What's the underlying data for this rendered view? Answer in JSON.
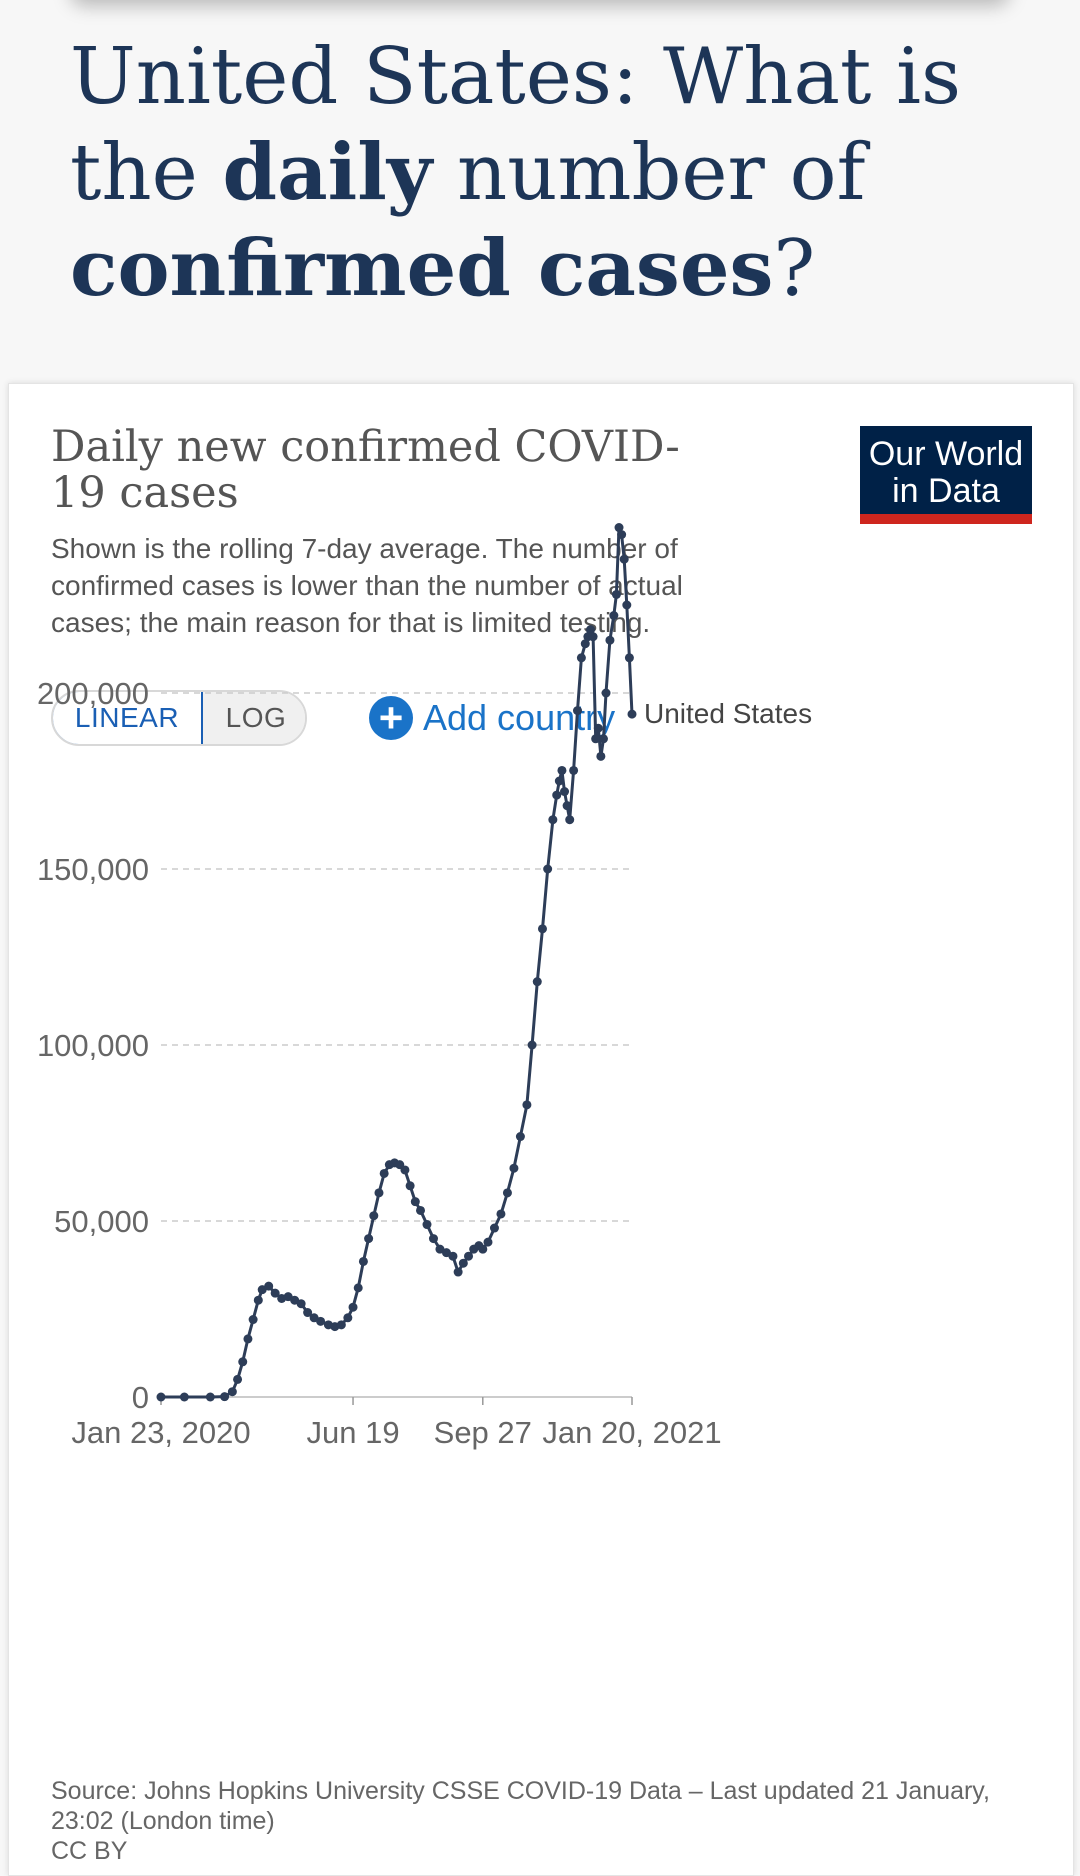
{
  "headline": {
    "part1": "United States: What is the ",
    "part2": "daily",
    "part3": " number of ",
    "part4": "confirmed cases",
    "part5": "?"
  },
  "chart": {
    "title": "Daily new confirmed COVID-19 cases",
    "subtitle": "Shown is the rolling 7-day average. The number of confirmed cases is lower than the number of actual cases; the main reason for that is limited testing.",
    "logo_line1": "Our World",
    "logo_line2": "in Data",
    "toggle_linear": "LINEAR",
    "toggle_log": "LOG",
    "add_country": "Add country",
    "source": "Source: Johns Hopkins University CSSE COVID-19 Data – Last updated 21 January, 23:02 (London time)",
    "license": "CC BY"
  },
  "colors": {
    "headline": "#1d3557",
    "series": "#2d3d58",
    "grid": "#cccccc",
    "accent": "#1a73c8",
    "logo_bg": "#002147",
    "logo_red": "#ce261e"
  },
  "chart_data": {
    "type": "line",
    "title": "Daily new confirmed COVID-19 cases",
    "xlabel": "",
    "ylabel": "",
    "ylim": [
      0,
      250000
    ],
    "yticks": [
      0,
      50000,
      100000,
      150000,
      200000
    ],
    "ytick_labels": [
      "0",
      "50,000",
      "100,000",
      "150,000",
      "200,000"
    ],
    "xticks": [
      "2020-01-23",
      "2020-06-19",
      "2020-09-27",
      "2021-01-20"
    ],
    "xtick_labels": [
      "Jan 23, 2020",
      "Jun 19",
      "Sep 27",
      "Jan 20, 2021"
    ],
    "grid": true,
    "series": [
      {
        "name": "United States",
        "x": [
          "2020-01-23",
          "2020-02-10",
          "2020-03-01",
          "2020-03-12",
          "2020-03-18",
          "2020-03-22",
          "2020-03-26",
          "2020-03-30",
          "2020-04-03",
          "2020-04-07",
          "2020-04-10",
          "2020-04-15",
          "2020-04-20",
          "2020-04-25",
          "2020-04-30",
          "2020-05-05",
          "2020-05-10",
          "2020-05-15",
          "2020-05-20",
          "2020-05-25",
          "2020-05-31",
          "2020-06-05",
          "2020-06-10",
          "2020-06-15",
          "2020-06-19",
          "2020-06-23",
          "2020-06-27",
          "2020-07-01",
          "2020-07-05",
          "2020-07-09",
          "2020-07-13",
          "2020-07-17",
          "2020-07-21",
          "2020-07-25",
          "2020-07-29",
          "2020-08-02",
          "2020-08-06",
          "2020-08-10",
          "2020-08-15",
          "2020-08-20",
          "2020-08-25",
          "2020-08-30",
          "2020-09-04",
          "2020-09-08",
          "2020-09-12",
          "2020-09-16",
          "2020-09-20",
          "2020-09-24",
          "2020-09-27",
          "2020-10-01",
          "2020-10-06",
          "2020-10-11",
          "2020-10-16",
          "2020-10-21",
          "2020-10-26",
          "2020-10-31",
          "2020-11-04",
          "2020-11-08",
          "2020-11-12",
          "2020-11-16",
          "2020-11-20",
          "2020-11-23",
          "2020-11-25",
          "2020-11-27",
          "2020-11-29",
          "2020-12-01",
          "2020-12-03",
          "2020-12-06",
          "2020-12-09",
          "2020-12-12",
          "2020-12-15",
          "2020-12-17",
          "2020-12-19",
          "2020-12-21",
          "2020-12-23",
          "2020-12-25",
          "2020-12-27",
          "2020-12-29",
          "2020-12-31",
          "2021-01-03",
          "2021-01-06",
          "2021-01-08",
          "2021-01-10",
          "2021-01-12",
          "2021-01-14",
          "2021-01-16",
          "2021-01-18",
          "2021-01-20"
        ],
        "y": [
          0,
          0,
          0,
          100,
          1500,
          5000,
          10000,
          16500,
          22000,
          27500,
          30500,
          31500,
          29500,
          28000,
          28500,
          27500,
          26500,
          24000,
          22500,
          21500,
          20500,
          20000,
          20500,
          22500,
          25500,
          31000,
          38500,
          45000,
          51500,
          58000,
          63500,
          66000,
          66500,
          66000,
          64500,
          60000,
          55500,
          53000,
          49000,
          45000,
          42000,
          41000,
          40000,
          35500,
          38000,
          40000,
          42000,
          43000,
          42000,
          44000,
          48000,
          52000,
          58000,
          65000,
          74000,
          83000,
          100000,
          118000,
          133000,
          150000,
          164000,
          171000,
          175000,
          178000,
          172000,
          168000,
          164000,
          178000,
          195000,
          210000,
          214000,
          216000,
          218000,
          216000,
          187000,
          190000,
          182000,
          187000,
          200000,
          215000,
          222000,
          228000,
          247000,
          245000,
          238000,
          225000,
          210000,
          194000
        ]
      }
    ],
    "end_label": "United States"
  }
}
